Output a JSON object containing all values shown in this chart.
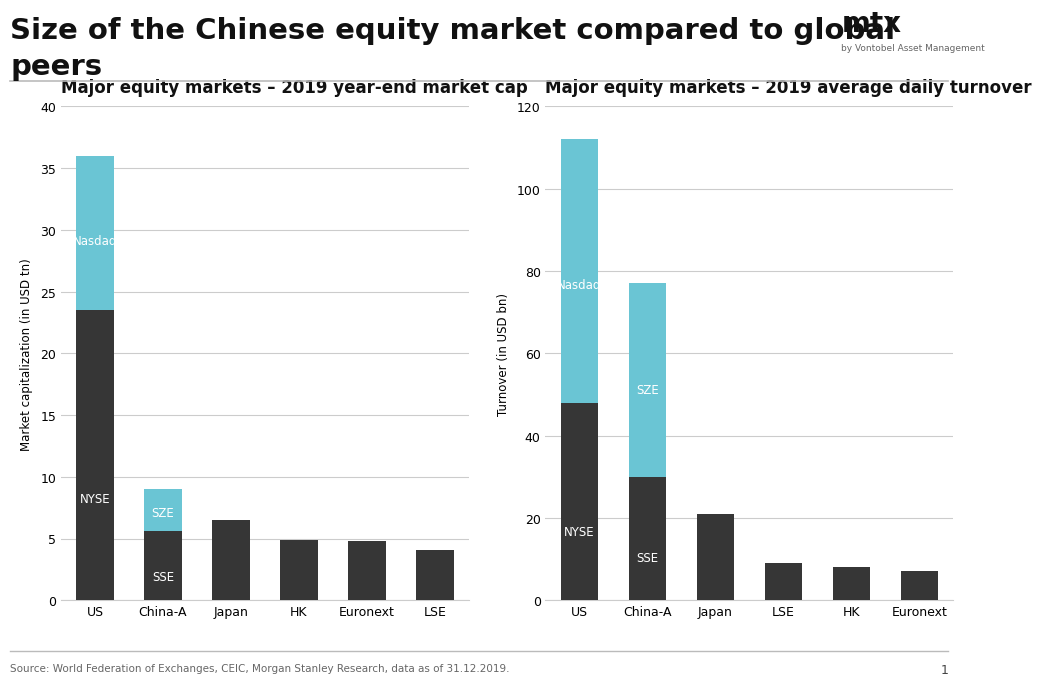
{
  "title_line1": "Size of the Chinese equity market compared to global",
  "title_line2": "peers",
  "title_fontsize": 21,
  "subtitle_fontsize": 12,
  "background_color": "#ffffff",
  "dark_bar_color": "#363636",
  "light_bar_color": "#6ac5d4",
  "bar_width": 0.55,
  "chart1_title": "Major equity markets – 2019 year-end market cap",
  "chart1_ylabel": "Market capitalization (in USD tn)",
  "chart1_ylim": [
    0,
    40
  ],
  "chart1_yticks": [
    0,
    5,
    10,
    15,
    20,
    25,
    30,
    35,
    40
  ],
  "chart1_categories": [
    "US",
    "China-A",
    "Japan",
    "HK",
    "Euronext",
    "LSE"
  ],
  "chart1_bottom": [
    23.5,
    5.6,
    0,
    0,
    0,
    0
  ],
  "chart1_top": [
    12.5,
    3.4,
    0,
    0,
    0,
    0
  ],
  "chart1_single": [
    0,
    0,
    6.5,
    4.9,
    4.8,
    4.1
  ],
  "chart1_label_bottom": [
    "NYSE",
    "SSE",
    "",
    "",
    "",
    ""
  ],
  "chart1_label_top": [
    "Nasdaq",
    "SZE",
    "",
    "",
    "",
    ""
  ],
  "chart2_title": "Major equity markets – 2019 average daily turnover",
  "chart2_ylabel": "Turnover (in USD bn)",
  "chart2_ylim": [
    0,
    120
  ],
  "chart2_yticks": [
    0,
    20,
    40,
    60,
    80,
    100,
    120
  ],
  "chart2_categories": [
    "US",
    "China-A",
    "Japan",
    "LSE",
    "HK",
    "Euronext"
  ],
  "chart2_bottom": [
    48,
    30,
    0,
    0,
    0,
    0
  ],
  "chart2_top": [
    64,
    47,
    0,
    0,
    0,
    0
  ],
  "chart2_single": [
    0,
    0,
    21,
    9,
    8,
    7
  ],
  "chart2_label_bottom": [
    "NYSE",
    "SSE",
    "",
    "",
    "",
    ""
  ],
  "chart2_label_top": [
    "Nasdaq",
    "SZE",
    "",
    "",
    "",
    ""
  ],
  "source_text": "Source: World Federation of Exchanges, CEIC, Morgan Stanley Research, data as of 31.12.2019.",
  "page_number": "1",
  "logo_text": "mtx",
  "logo_subtext": "by Vontobel Asset Management",
  "separator_color": "#bbbbbb",
  "grid_color": "#cccccc",
  "label_fontsize": 8.5,
  "axis_label_fontsize": 8.5,
  "tick_fontsize": 9
}
